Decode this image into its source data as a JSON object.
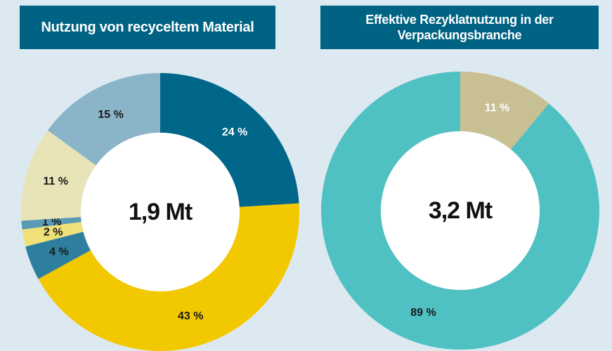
{
  "chart_data": [
    {
      "type": "pie",
      "title": "Nutzung von recyceltem Material",
      "center_label": "1,9 Mt",
      "values": [
        24,
        43,
        4,
        2,
        1,
        11,
        15
      ],
      "value_labels": [
        "24 %",
        "43 %",
        "4 %",
        "2 %",
        "1 %",
        "11 %",
        "15 %"
      ],
      "colors": [
        "#00668a",
        "#f2c800",
        "#2e7f9e",
        "#f0e07a",
        "#5a9ab5",
        "#e8e4b8",
        "#8ab4c8"
      ],
      "label_colors": [
        "#ffffff",
        "#1a1a1a",
        "#1a1a1a",
        "#1a1a1a",
        "#1a1a1a",
        "#1a1a1a",
        "#1a1a1a"
      ]
    },
    {
      "type": "pie",
      "title": "Effektive Rezyklatnutzung in der Verpackungsbranche",
      "center_label": "3,2 Mt",
      "values": [
        11,
        89
      ],
      "value_labels": [
        "11 %",
        "89 %"
      ],
      "colors": [
        "#c8bf92",
        "#4fc1c3"
      ],
      "label_colors": [
        "#ffffff",
        "#1a1a1a"
      ]
    }
  ]
}
